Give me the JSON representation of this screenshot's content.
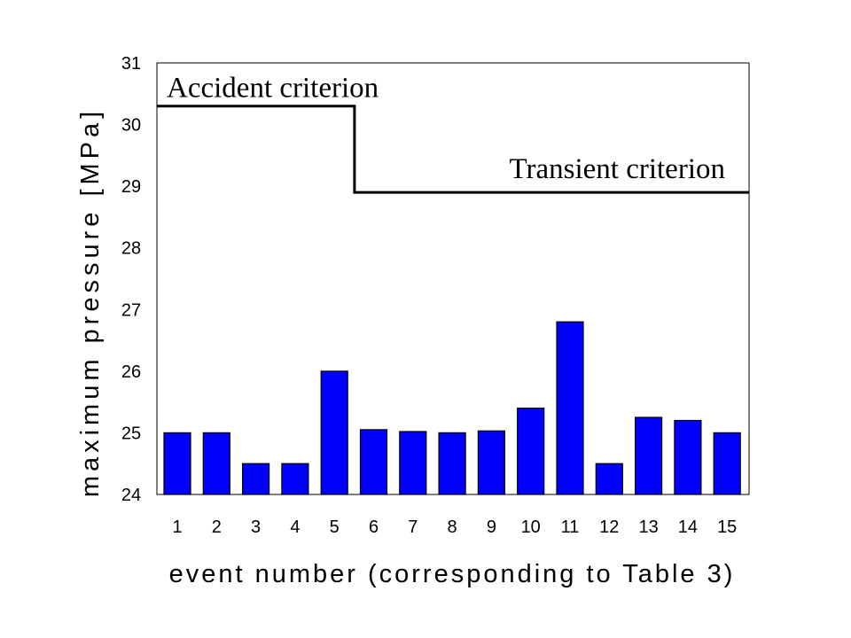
{
  "chart_data": {
    "type": "bar",
    "categories": [
      "1",
      "2",
      "3",
      "4",
      "5",
      "6",
      "7",
      "8",
      "9",
      "10",
      "11",
      "12",
      "13",
      "14",
      "15"
    ],
    "series": [
      {
        "values": [
          25.0,
          25.0,
          24.5,
          24.5,
          26.0,
          25.05,
          25.02,
          25.0,
          25.03,
          25.4,
          26.8,
          24.5,
          25.25,
          25.2,
          25.0
        ],
        "color": "#0000ff"
      }
    ],
    "xlabel": "event number (corresponding to Table 3)",
    "ylabel": "maximum pressure [MPa]",
    "ylim": [
      24,
      31
    ],
    "yticks": [
      "24",
      "25",
      "26",
      "27",
      "28",
      "29",
      "30",
      "31"
    ],
    "grid": false,
    "criteria": [
      {
        "label": "Accident criterion",
        "value": 30.3,
        "x_from": "1",
        "x_to": "5.5"
      },
      {
        "label": "Transient criterion",
        "value": 28.9,
        "x_from": "5.5",
        "x_to": "15"
      }
    ]
  }
}
